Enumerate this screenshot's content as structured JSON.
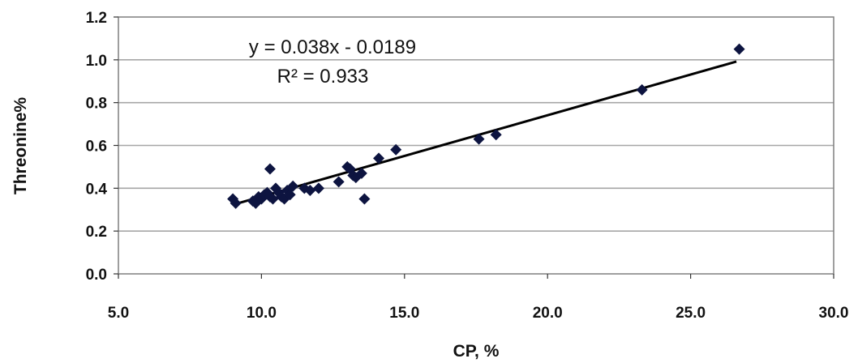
{
  "chart_data": {
    "type": "scatter",
    "title": "",
    "xlabel": "CP, %",
    "ylabel": "Threonine%",
    "xlim": [
      5.0,
      30.0
    ],
    "ylim": [
      0.0,
      1.2
    ],
    "x_ticks": [
      "5.0",
      "10.0",
      "15.0",
      "20.0",
      "25.0",
      "30.0"
    ],
    "y_ticks": [
      "0.0",
      "0.2",
      "0.4",
      "0.6",
      "0.8",
      "1.0",
      "1.2"
    ],
    "grid": "horizontal",
    "legend": "none",
    "marker": "diamond",
    "marker_color": "#0d1440",
    "line_color": "#000000",
    "gridline_color": "#a6a6a6",
    "series": [
      {
        "points": [
          [
            9.0,
            0.35
          ],
          [
            9.1,
            0.33
          ],
          [
            9.7,
            0.34
          ],
          [
            9.8,
            0.33
          ],
          [
            9.9,
            0.36
          ],
          [
            10.0,
            0.35
          ],
          [
            10.1,
            0.37
          ],
          [
            10.2,
            0.38
          ],
          [
            10.3,
            0.36
          ],
          [
            10.3,
            0.49
          ],
          [
            10.4,
            0.35
          ],
          [
            10.5,
            0.4
          ],
          [
            10.6,
            0.38
          ],
          [
            10.7,
            0.36
          ],
          [
            10.8,
            0.35
          ],
          [
            10.9,
            0.39
          ],
          [
            11.0,
            0.37
          ],
          [
            11.1,
            0.41
          ],
          [
            11.5,
            0.4
          ],
          [
            11.7,
            0.39
          ],
          [
            12.0,
            0.4
          ],
          [
            12.7,
            0.43
          ],
          [
            13.0,
            0.5
          ],
          [
            13.1,
            0.49
          ],
          [
            13.2,
            0.46
          ],
          [
            13.3,
            0.45
          ],
          [
            13.5,
            0.47
          ],
          [
            13.6,
            0.35
          ],
          [
            14.1,
            0.54
          ],
          [
            14.7,
            0.58
          ],
          [
            17.6,
            0.63
          ],
          [
            18.2,
            0.65
          ],
          [
            23.3,
            0.86
          ],
          [
            26.7,
            1.05
          ]
        ]
      }
    ],
    "trendline": {
      "slope": 0.038,
      "intercept": -0.0189,
      "x_range": [
        9.1,
        26.6
      ],
      "equation": "y = 0.038x - 0.0189",
      "r_squared": "R² = 0.933"
    }
  }
}
